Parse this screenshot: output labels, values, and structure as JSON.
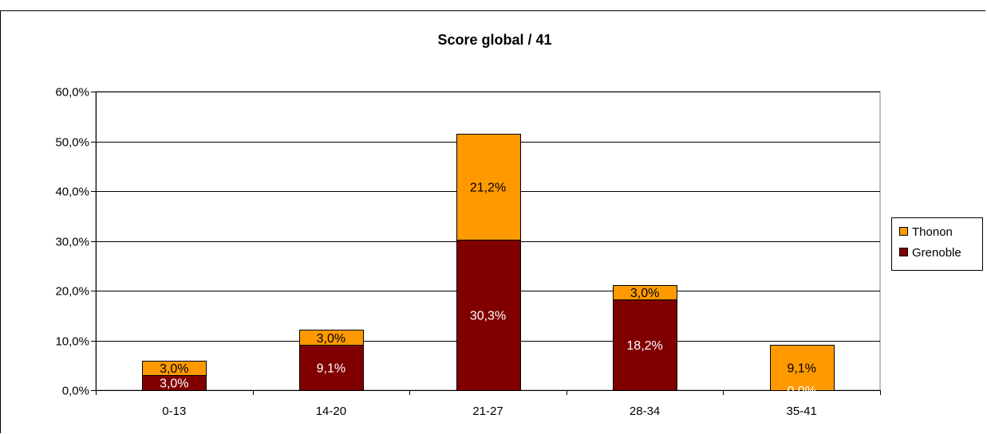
{
  "colors": {
    "thonon": "#FF9900",
    "grenoble": "#800000",
    "gridline": "#000000",
    "label_on_orange": "#000000",
    "label_on_dark": "#FFFFFF"
  },
  "chart_data": {
    "type": "bar",
    "stacked": true,
    "title": "Score global / 41",
    "xlabel": "",
    "ylabel": "",
    "categories": [
      "0-13",
      "14-20",
      "21-27",
      "28-34",
      "35-41"
    ],
    "ylim": [
      0,
      60
    ],
    "yticks": [
      "0,0%",
      "10,0%",
      "20,0%",
      "30,0%",
      "40,0%",
      "50,0%",
      "60,0%"
    ],
    "grid": true,
    "legend_position": "right",
    "series": [
      {
        "name": "Grenoble",
        "values": [
          3.0,
          9.1,
          30.3,
          18.2,
          0.0
        ],
        "labels": [
          "3,0%",
          "9,1%",
          "30,3%",
          "18,2%",
          "0,0%"
        ]
      },
      {
        "name": "Thonon",
        "values": [
          3.0,
          3.0,
          21.2,
          3.0,
          9.1
        ],
        "labels": [
          "3,0%",
          "3,0%",
          "21,2%",
          "3,0%",
          "9,1%"
        ]
      }
    ],
    "legend": [
      "Thonon",
      "Grenoble"
    ]
  }
}
